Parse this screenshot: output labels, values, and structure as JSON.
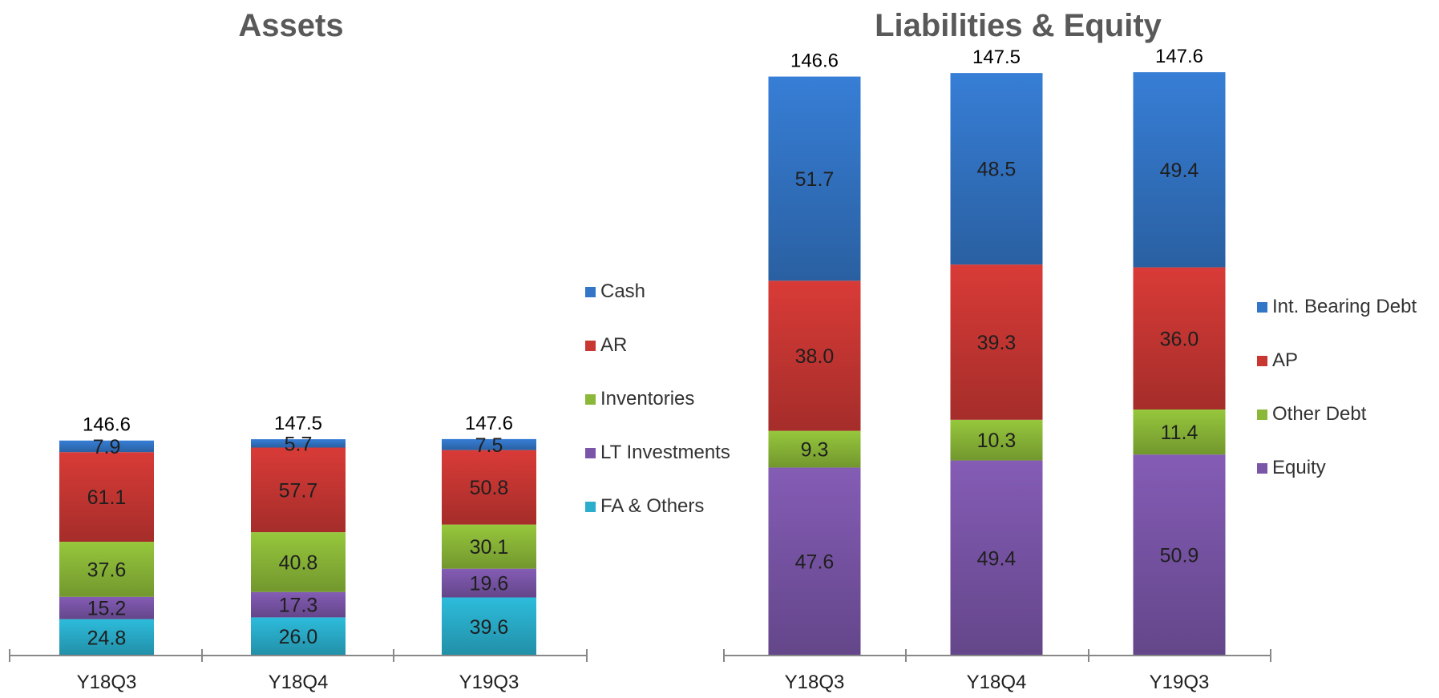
{
  "colors": {
    "blue": "#3375c6",
    "red": "#c93733",
    "green": "#8bb838",
    "purple": "#7a55a8",
    "cyan": "#2aaecc"
  },
  "chart_data": [
    {
      "type": "bar",
      "stacked": true,
      "title": "Assets",
      "categories": [
        "Y18Q3",
        "Y18Q4",
        "Y19Q3"
      ],
      "totals": [
        "146.6",
        "147.5",
        "147.6"
      ],
      "series": [
        {
          "name": "Cash",
          "color": "#3375c6",
          "values": [
            7.9,
            5.7,
            7.5
          ]
        },
        {
          "name": "AR",
          "color": "#c93733",
          "values": [
            61.1,
            57.7,
            50.8
          ]
        },
        {
          "name": "Inventories",
          "color": "#8bb838",
          "values": [
            37.6,
            40.8,
            30.1
          ]
        },
        {
          "name": "LT Investments",
          "color": "#7a55a8",
          "values": [
            15.2,
            17.3,
            19.6
          ]
        },
        {
          "name": "FA & Others",
          "color": "#2aaecc",
          "values": [
            24.8,
            26.0,
            39.6
          ]
        }
      ],
      "value_labels": [
        [
          "7.9",
          "5.7",
          "7.5"
        ],
        [
          "61.1",
          "57.7",
          "50.8"
        ],
        [
          "37.6",
          "40.8",
          "30.1"
        ],
        [
          "15.2",
          "17.3",
          "19.6"
        ],
        [
          "24.8",
          "26.0",
          "39.6"
        ]
      ],
      "legend_position": "right",
      "grid": false
    },
    {
      "type": "bar",
      "stacked": true,
      "title": "Liabilities & Equity",
      "categories": [
        "Y18Q3",
        "Y18Q4",
        "Y19Q3"
      ],
      "totals": [
        "146.6",
        "147.5",
        "147.6"
      ],
      "series": [
        {
          "name": "Int. Bearing Debt",
          "color": "#3375c6",
          "values": [
            51.7,
            48.5,
            49.4
          ]
        },
        {
          "name": "AP",
          "color": "#c93733",
          "values": [
            38.0,
            39.3,
            36.0
          ]
        },
        {
          "name": "Other Debt",
          "color": "#8bb838",
          "values": [
            9.3,
            10.3,
            11.4
          ]
        },
        {
          "name": "Equity",
          "color": "#7a55a8",
          "values": [
            47.6,
            49.4,
            50.9
          ]
        }
      ],
      "value_labels": [
        [
          "51.7",
          "48.5",
          "49.4"
        ],
        [
          "38.0",
          "39.3",
          "36.0"
        ],
        [
          "9.3",
          "10.3",
          "11.4"
        ],
        [
          "47.6",
          "49.4",
          "50.9"
        ]
      ],
      "legend_position": "right",
      "grid": false
    }
  ]
}
